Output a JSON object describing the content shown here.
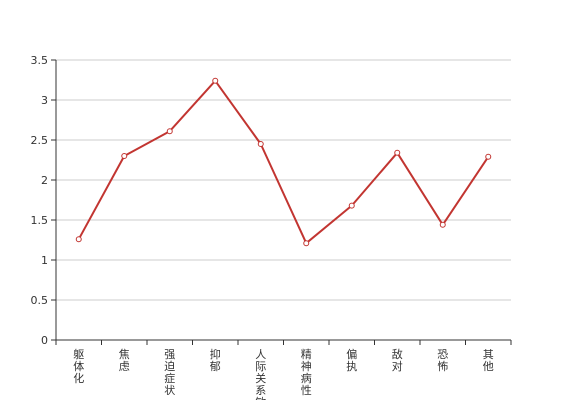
{
  "chart_data": {
    "type": "line",
    "title": "",
    "xlabel": "",
    "ylabel": "",
    "categories": [
      "躯体化",
      "焦虑",
      "强迫症状",
      "抑郁",
      "人际关系敏感",
      "精神病性",
      "偏执",
      "敌对",
      "恐怖",
      "其他"
    ],
    "series": [
      {
        "values": [
          1.26,
          2.3,
          2.61,
          3.24,
          2.45,
          1.21,
          1.68,
          2.34,
          1.44,
          2.29
        ],
        "color": "#c23531"
      }
    ],
    "ylim": [
      0,
      3.5
    ],
    "yticks": [
      "0",
      "0.5",
      "1",
      "1.5",
      "2",
      "2.5",
      "3",
      "3.5"
    ],
    "grid": true,
    "legend": "none"
  }
}
